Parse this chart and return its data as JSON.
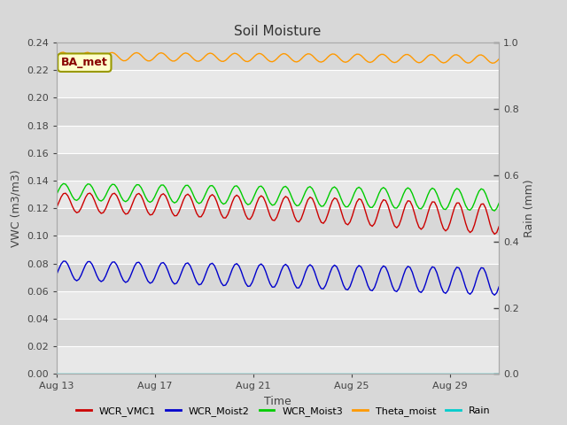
{
  "title": "Soil Moisture",
  "xlabel": "Time",
  "ylabel_left": "VWC (m3/m3)",
  "ylabel_right": "Rain (mm)",
  "xlim": [
    0,
    18
  ],
  "ylim_left": [
    0.0,
    0.24
  ],
  "ylim_right": [
    0.0,
    1.0
  ],
  "yticks_left": [
    0.0,
    0.02,
    0.04,
    0.06,
    0.08,
    0.1,
    0.12,
    0.14,
    0.16,
    0.18,
    0.2,
    0.22,
    0.24
  ],
  "yticks_right": [
    0.0,
    0.2,
    0.4,
    0.6,
    0.8,
    1.0
  ],
  "xtick_labels": [
    "Aug 13",
    "Aug 17",
    "Aug 21",
    "Aug 25",
    "Aug 29"
  ],
  "xtick_positions": [
    0,
    4,
    8,
    12,
    16
  ],
  "bg_color": "#d8d8d8",
  "plot_bg_light": "#e8e8e8",
  "plot_bg_dark": "#d8d8d8",
  "annotation_text": "BA_met",
  "annotation_bg": "#ffffcc",
  "annotation_border": "#999900",
  "annotation_text_color": "#880000",
  "colors": {
    "WCR_VMC1": "#cc0000",
    "WCR_Moist2": "#0000cc",
    "WCR_Moist3": "#00cc00",
    "Theta_moist": "#ff9900",
    "Rain": "#00cccc"
  },
  "legend_labels": [
    "WCR_VMC1",
    "WCR_Moist2",
    "WCR_Moist3",
    "Theta_moist",
    "Rain"
  ]
}
